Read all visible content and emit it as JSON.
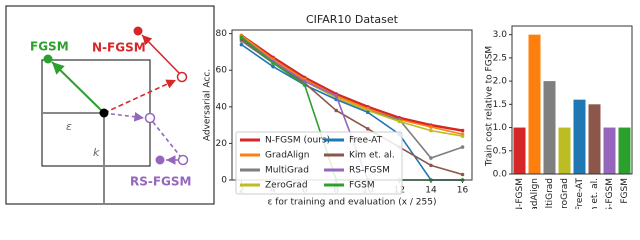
{
  "diagram": {
    "fgsm": "FGSM",
    "nfgsm": "N-FGSM",
    "epsilon": "ε",
    "k": "k",
    "rsfgsm": "RS-FGSM"
  },
  "chart_data": [
    {
      "type": "line",
      "title": "CIFAR10 Dataset",
      "x_label": "ε for training and evaluation (x / 255)",
      "y_label": "Adversarial Acc.",
      "x": [
        2,
        4,
        6,
        8,
        10,
        12,
        14,
        16
      ],
      "xlim": [
        1.4,
        16.6
      ],
      "xticks": [
        2,
        4,
        6,
        8,
        10,
        12,
        14,
        16
      ],
      "ylim": [
        0,
        82
      ],
      "yticks": [
        0,
        20,
        40,
        60,
        80
      ],
      "legend": "lower left",
      "series": [
        {
          "name": "N-FGSM (ours)",
          "color": "#d62728",
          "values": [
            79,
            67,
            56,
            47,
            40,
            34,
            30,
            27
          ]
        },
        {
          "name": "GradAlign",
          "color": "#ff7f0e",
          "values": [
            79,
            66,
            55,
            46,
            39,
            33,
            29,
            25
          ]
        },
        {
          "name": "MultiGrad",
          "color": "#7f7f7f",
          "values": [
            76,
            64,
            54,
            45,
            38,
            33,
            12,
            18
          ]
        },
        {
          "name": "ZeroGrad",
          "color": "#bcbd22",
          "values": [
            78,
            65,
            54,
            45,
            38,
            32,
            27,
            24
          ]
        },
        {
          "name": "Free-AT",
          "color": "#1f77b4",
          "values": [
            74,
            62,
            52,
            44,
            37,
            25,
            0,
            0
          ]
        },
        {
          "name": "Kim et. al.",
          "color": "#8c564b",
          "values": [
            77,
            64,
            53,
            38,
            28,
            18,
            8,
            3
          ]
        },
        {
          "name": "RS-FGSM",
          "color": "#9467bd",
          "values": [
            78,
            65,
            54,
            46,
            0,
            0,
            0,
            0
          ]
        },
        {
          "name": "FGSM",
          "color": "#2ca02c",
          "values": [
            78,
            64,
            52,
            0,
            0,
            0,
            0,
            0
          ]
        }
      ]
    },
    {
      "type": "bar",
      "y_label": "Train cost relative to FGSM",
      "categories": [
        "N-FGSM",
        "GradAlign",
        "MultiGrad",
        "ZeroGrad",
        "Free-AT",
        "Kim et. al.",
        "RS-FGSM",
        "FGSM"
      ],
      "values": [
        1,
        3,
        2,
        1,
        1.6,
        1.5,
        1,
        1
      ],
      "colors": [
        "#d62728",
        "#ff7f0e",
        "#7f7f7f",
        "#bcbd22",
        "#1f77b4",
        "#8c564b",
        "#9467bd",
        "#2ca02c"
      ],
      "ylim": [
        0,
        3.1
      ],
      "yticks": [
        {
          "value": 0,
          "label": "0.0"
        },
        0.5,
        {
          "value": 1,
          "label": "1.0"
        },
        1.5,
        {
          "value": 2,
          "label": "2.0"
        },
        2.5,
        {
          "value": 3,
          "label": "3.0"
        }
      ]
    }
  ]
}
